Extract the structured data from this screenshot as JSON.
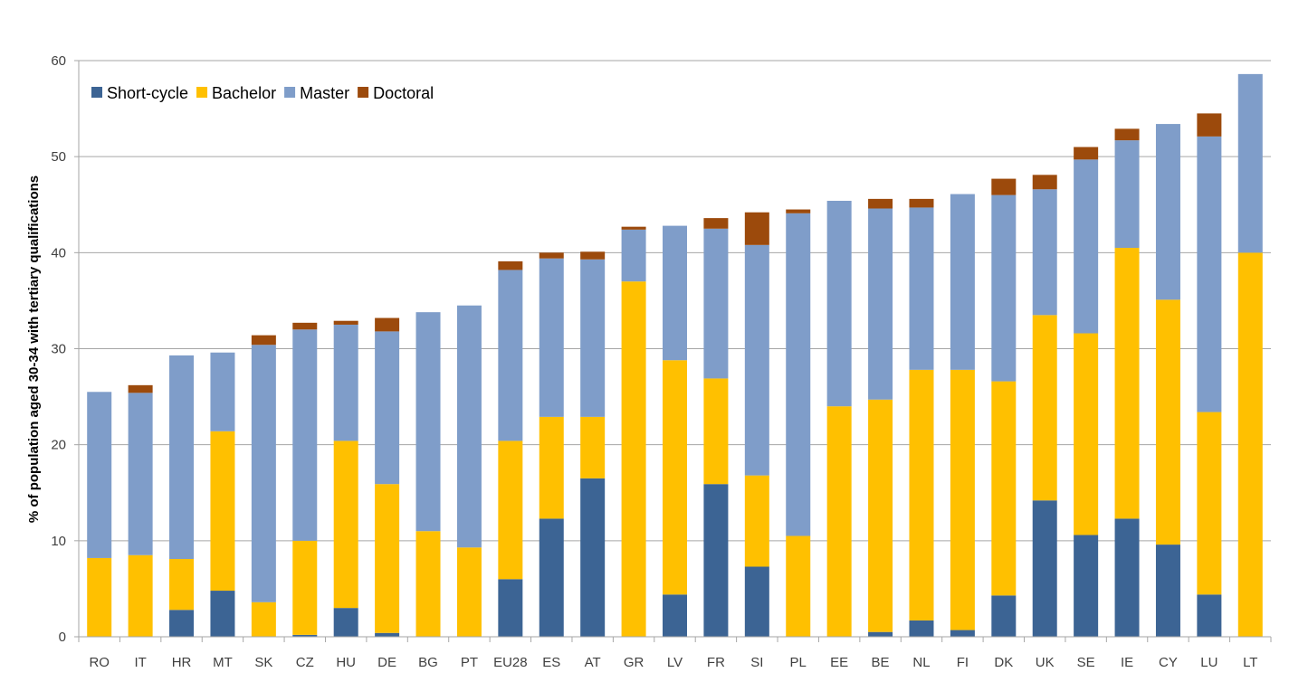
{
  "chart_data": {
    "type": "bar",
    "stacked": true,
    "title": "",
    "xlabel": "",
    "ylabel": "% of population aged 30-34 with tertiary qualifications",
    "ylim": [
      0,
      60
    ],
    "yticks": [
      0,
      10,
      20,
      30,
      40,
      50,
      60
    ],
    "grid": true,
    "legend_position": "top-left",
    "categories": [
      "RO",
      "IT",
      "HR",
      "MT",
      "SK",
      "CZ",
      "HU",
      "DE",
      "BG",
      "PT",
      "EU28",
      "ES",
      "AT",
      "GR",
      "LV",
      "FR",
      "SI",
      "PL",
      "EE",
      "BE",
      "NL",
      "FI",
      "DK",
      "UK",
      "SE",
      "IE",
      "CY",
      "LU",
      "LT"
    ],
    "series": [
      {
        "name": "Short-cycle",
        "color": "#3c6494",
        "values": [
          0,
          0,
          2.8,
          4.8,
          0,
          0.2,
          3.0,
          0.4,
          0,
          0,
          6.0,
          12.3,
          16.5,
          0,
          4.4,
          15.9,
          7.3,
          0,
          0,
          0.5,
          1.7,
          0.7,
          4.3,
          14.2,
          10.6,
          12.3,
          9.6,
          4.4,
          0
        ]
      },
      {
        "name": "Bachelor",
        "color": "#ffc000",
        "values": [
          8.2,
          8.5,
          5.3,
          16.6,
          3.6,
          9.8,
          17.4,
          15.5,
          11.0,
          9.3,
          14.4,
          10.6,
          6.4,
          37.0,
          24.4,
          11.0,
          9.5,
          10.5,
          24.0,
          24.2,
          26.1,
          27.1,
          22.3,
          19.3,
          21.0,
          28.2,
          25.5,
          19.0,
          40.0
        ]
      },
      {
        "name": "Master",
        "color": "#7f9dc9",
        "values": [
          17.3,
          16.9,
          21.2,
          8.2,
          26.8,
          22.0,
          12.1,
          15.9,
          22.8,
          25.2,
          17.8,
          16.5,
          16.4,
          5.4,
          14.0,
          15.6,
          24.0,
          33.6,
          21.4,
          19.9,
          16.9,
          18.3,
          19.4,
          13.1,
          18.1,
          11.2,
          18.3,
          28.7,
          18.6
        ]
      },
      {
        "name": "Doctoral",
        "color": "#9c4a0c",
        "values": [
          0,
          0.8,
          0,
          0,
          1.0,
          0.7,
          0.4,
          1.4,
          0,
          0,
          0.9,
          0.6,
          0.8,
          0.3,
          0,
          1.1,
          3.4,
          0.4,
          0,
          1.0,
          0.9,
          0,
          1.7,
          1.5,
          1.3,
          1.2,
          0,
          2.4,
          0
        ]
      }
    ]
  }
}
